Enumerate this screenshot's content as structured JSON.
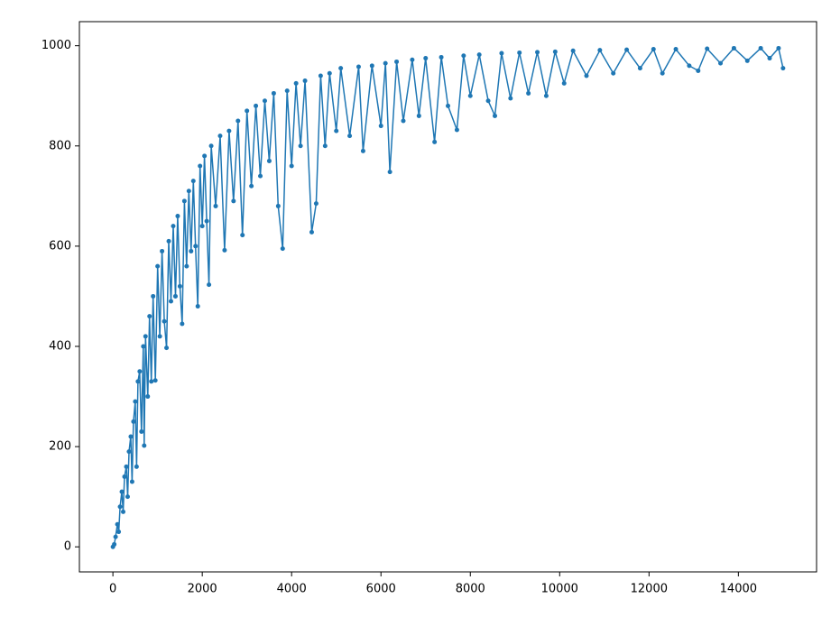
{
  "chart_data": {
    "type": "line",
    "color": "#1f77b4",
    "markers": true,
    "x": [
      0,
      30,
      60,
      100,
      130,
      160,
      200,
      230,
      260,
      300,
      330,
      360,
      400,
      430,
      460,
      500,
      530,
      560,
      600,
      640,
      680,
      700,
      730,
      780,
      820,
      860,
      900,
      950,
      1000,
      1050,
      1100,
      1150,
      1200,
      1250,
      1300,
      1350,
      1400,
      1450,
      1500,
      1550,
      1600,
      1650,
      1700,
      1750,
      1800,
      1850,
      1900,
      1950,
      2000,
      2050,
      2100,
      2150,
      2200,
      2300,
      2400,
      2500,
      2600,
      2700,
      2800,
      2900,
      3000,
      3100,
      3200,
      3300,
      3400,
      3500,
      3600,
      3700,
      3800,
      3900,
      4000,
      4100,
      4200,
      4300,
      4450,
      4550,
      4650,
      4750,
      4850,
      5000,
      5100,
      5300,
      5500,
      5600,
      5800,
      6000,
      6100,
      6200,
      6350,
      6500,
      6700,
      6850,
      7000,
      7200,
      7350,
      7500,
      7700,
      7850,
      8000,
      8200,
      8400,
      8550,
      8700,
      8900,
      9100,
      9300,
      9500,
      9700,
      9900,
      10100,
      10300,
      10600,
      10900,
      11200,
      11500,
      11800,
      12100,
      12300,
      12600,
      12900,
      13100,
      13300,
      13600,
      13900,
      14200,
      14500,
      14700,
      14900,
      15000
    ],
    "values": [
      0,
      5,
      20,
      45,
      30,
      80,
      110,
      70,
      140,
      160,
      100,
      190,
      220,
      130,
      250,
      290,
      160,
      330,
      350,
      230,
      400,
      202,
      420,
      300,
      460,
      330,
      500,
      332,
      560,
      420,
      590,
      450,
      397,
      610,
      490,
      640,
      500,
      660,
      520,
      445,
      690,
      560,
      710,
      590,
      730,
      600,
      480,
      760,
      640,
      780,
      650,
      523,
      800,
      680,
      820,
      592,
      830,
      690,
      850,
      622,
      870,
      720,
      880,
      740,
      890,
      770,
      905,
      680,
      595,
      910,
      760,
      925,
      800,
      930,
      628,
      685,
      940,
      800,
      945,
      830,
      955,
      820,
      958,
      790,
      960,
      840,
      965,
      748,
      968,
      850,
      972,
      860,
      975,
      808,
      977,
      880,
      832,
      980,
      900,
      982,
      890,
      860,
      985,
      895,
      986,
      905,
      987,
      900,
      988,
      925,
      990,
      940,
      991,
      945,
      992,
      955,
      993,
      945,
      993,
      960,
      950,
      994,
      965,
      995,
      970,
      995,
      975,
      995,
      955
    ],
    "xlim": [
      -750,
      15750
    ],
    "ylim": [
      -50,
      1048
    ],
    "xticks": [
      0,
      2000,
      4000,
      6000,
      8000,
      10000,
      12000,
      14000
    ],
    "yticks": [
      0,
      200,
      400,
      600,
      800,
      1000
    ]
  }
}
